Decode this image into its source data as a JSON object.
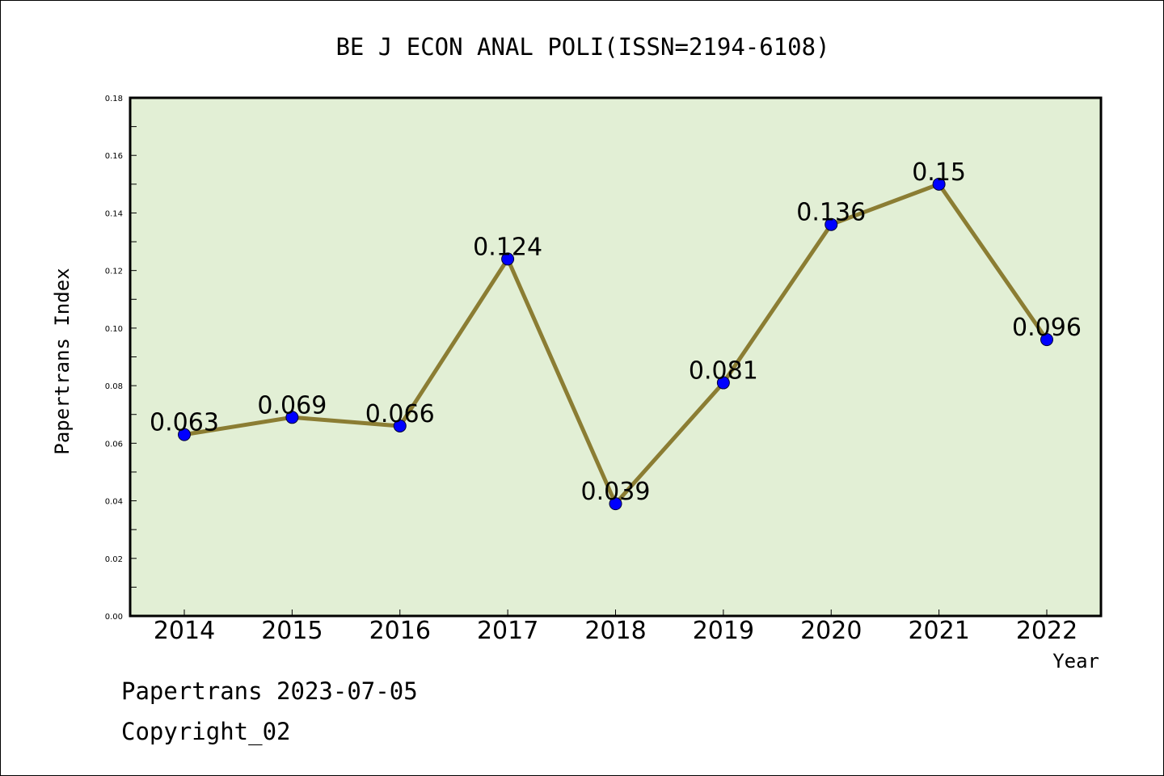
{
  "chart_data": {
    "type": "line",
    "title": "BE J ECON ANAL POLI(ISSN=2194-6108)",
    "xlabel": "Year",
    "ylabel": "Papertrans Index",
    "categories": [
      "2014",
      "2015",
      "2016",
      "2017",
      "2018",
      "2019",
      "2020",
      "2021",
      "2022"
    ],
    "series": [
      {
        "values": [
          0.063,
          0.069,
          0.066,
          0.124,
          0.039,
          0.081,
          0.136,
          0.15,
          0.096
        ],
        "labels": [
          "0.063",
          "0.069",
          "0.066",
          "0.124",
          "0.039",
          "0.081",
          "0.136",
          "0.15",
          "0.096"
        ]
      }
    ],
    "ylim": [
      0,
      0.18
    ],
    "yticks": [
      "0.00",
      "0.02",
      "0.04",
      "0.06",
      "0.08",
      "0.10",
      "0.12",
      "0.14",
      "0.16",
      "0.18"
    ],
    "grid": false,
    "legend": "none",
    "colors": {
      "plot_background": "#e2efd5",
      "line": "#8b7d33",
      "marker": "#0000ff"
    }
  },
  "footer": {
    "line1": "Papertrans 2023-07-05",
    "line2": "Copyright_02"
  }
}
